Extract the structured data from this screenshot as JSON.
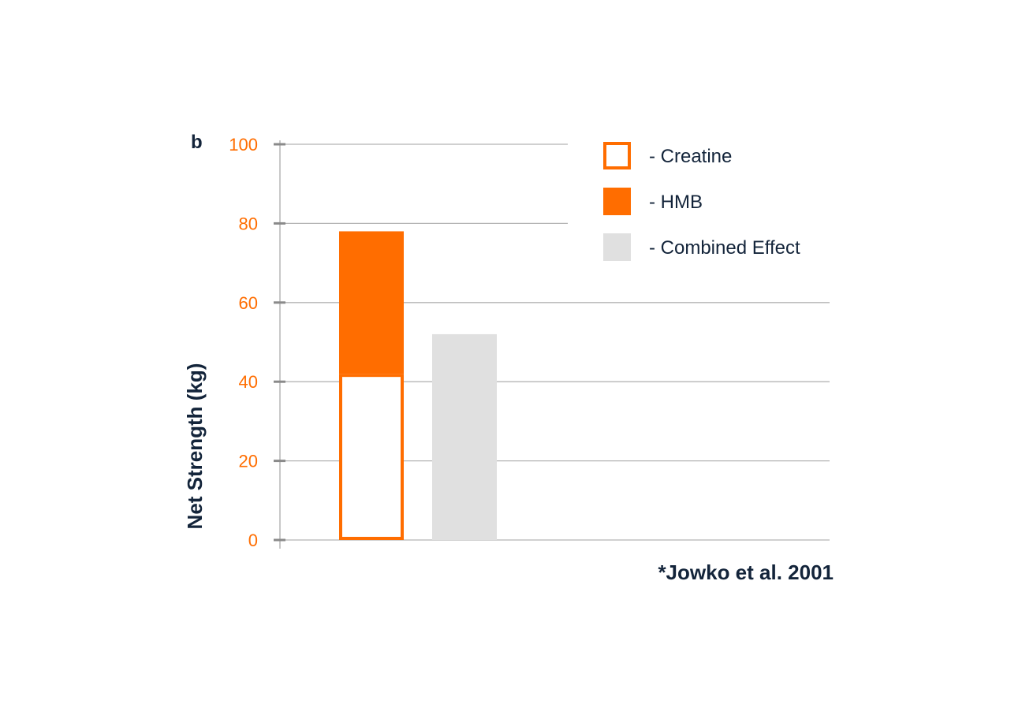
{
  "chart_data": {
    "type": "bar",
    "stacked": true,
    "panel_label": "b",
    "ylabel": "Net Strength (kg)",
    "xlabel": "",
    "ylim": [
      0,
      100
    ],
    "yticks": [
      "0",
      "20",
      "40",
      "60",
      "80",
      "100"
    ],
    "grid": true,
    "legend_position": "top-right",
    "bars": [
      {
        "segments": [
          {
            "series": "Creatine",
            "value": 42
          },
          {
            "series": "HMB",
            "value": 36
          }
        ]
      },
      {
        "segments": [
          {
            "series": "Combined Effect",
            "value": 52
          }
        ]
      }
    ],
    "series": [
      {
        "name": "- Creatine",
        "style": "outline",
        "color": "#ff6d00"
      },
      {
        "name": "- HMB",
        "style": "fill",
        "color": "#ff6d00"
      },
      {
        "name": "- Combined Effect",
        "style": "fill",
        "color": "#e0e0e0"
      }
    ],
    "annotation": "*Jowko et al. 2001"
  }
}
